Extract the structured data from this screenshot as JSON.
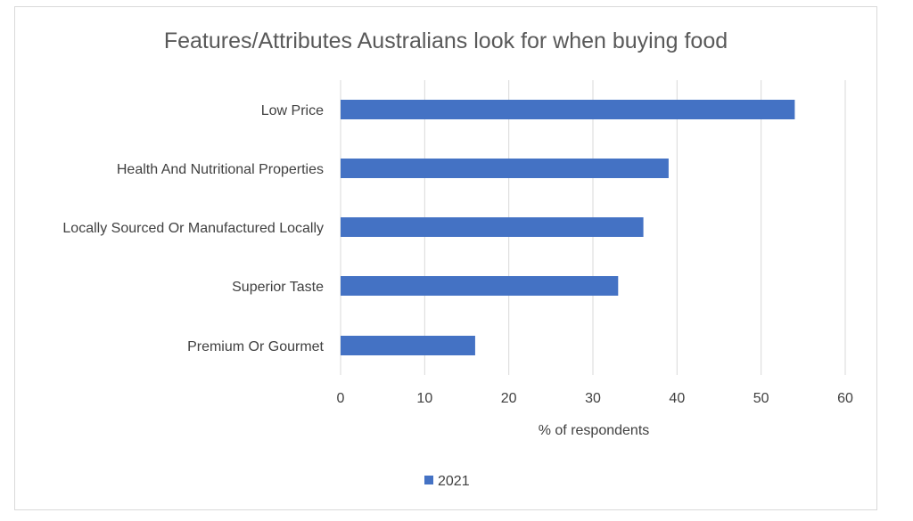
{
  "chart_data": {
    "type": "bar",
    "orientation": "horizontal",
    "title": "Features/Attributes Australians look for when buying food",
    "categories": [
      "Low Price",
      "Health And Nutritional Properties",
      "Locally Sourced Or Manufactured Locally",
      "Superior Taste",
      "Premium Or Gourmet"
    ],
    "series": [
      {
        "name": "2021",
        "values": [
          54,
          39,
          36,
          33,
          16
        ],
        "color": "#4472c4"
      }
    ],
    "xlabel": "% of respondents",
    "ylabel": "",
    "xlim": [
      0,
      60
    ],
    "xticks": [
      "0",
      "10",
      "20",
      "30",
      "40",
      "50",
      "60"
    ],
    "grid": true,
    "legend_position": "bottom"
  }
}
